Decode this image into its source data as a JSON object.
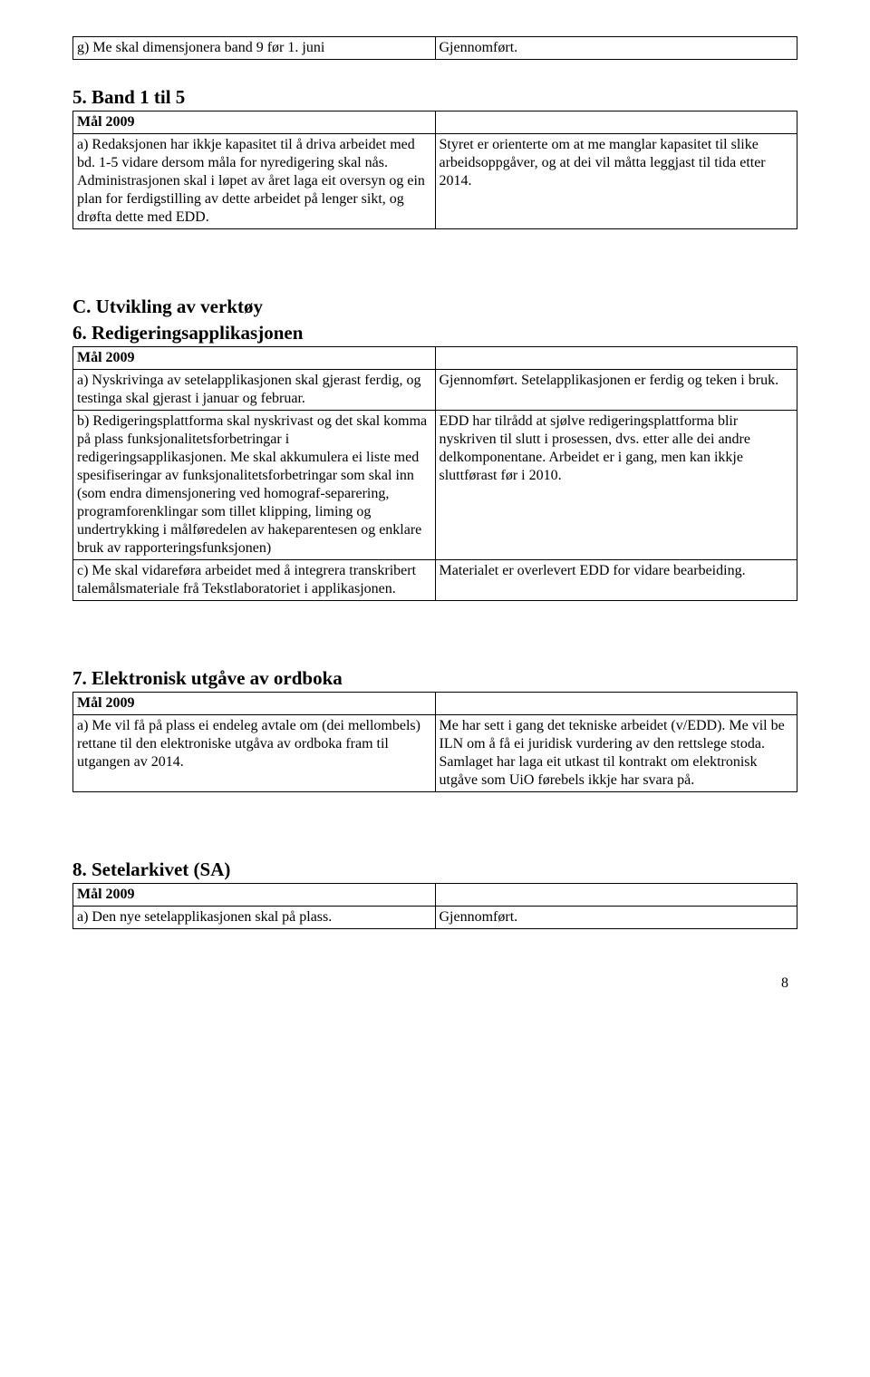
{
  "table1": {
    "left": "g) Me skal dimensjonera band 9 før 1. juni",
    "right": "Gjennomført."
  },
  "sec5": {
    "title": "5. Band 1 til 5",
    "mal": "Mål 2009",
    "r1l": "a) Redaksjonen har ikkje kapasitet til å driva arbeidet med bd. 1-5 vidare dersom måla for nyredigering skal nås. Administrasjonen skal i løpet av året laga eit oversyn og ein plan for ferdigstilling av dette arbeidet på lenger sikt, og drøfta dette med EDD.",
    "r1r": "Styret er orienterte om at me manglar kapasitet til slike arbeidsoppgåver, og at dei vil måtta leggjast til tida etter 2014."
  },
  "secC": {
    "title": "C. Utvikling av verktøy",
    "sub": "6. Redigeringsapplikasjonen",
    "mal": "Mål 2009",
    "r1l": "a) Nyskrivinga av setelapplikasjonen skal gjerast ferdig, og testinga skal gjerast i januar og februar.",
    "r1r": "Gjennomført. Setelapplikasjonen er ferdig og teken i bruk.",
    "r2l": "b) Redigeringsplattforma skal nyskrivast og det skal komma på plass funksjonalitetsforbetringar i redigeringsapplikasjonen. Me skal akkumulera ei liste med spesifiseringar av funksjonalitetsforbetringar som skal inn (som endra dimensjonering ved homograf-separering, programforenklingar som tillet klipping, liming og undertrykking i målføredelen av hakeparentesen og enklare bruk av rapporteringsfunksjonen)",
    "r2r": "EDD har tilrådd at sjølve redigeringsplattforma blir nyskriven til slutt i prosessen, dvs. etter alle dei andre delkomponentane. Arbeidet er i gang, men kan ikkje sluttførast før i 2010.",
    "r3l": "c) Me skal vidareføra arbeidet med å integrera transkribert talemålsmateriale frå Tekstlaboratoriet i applikasjonen.",
    "r3r": "Materialet er overlevert EDD for vidare bearbeiding."
  },
  "sec7": {
    "title": "7. Elektronisk utgåve av ordboka",
    "mal": "Mål 2009",
    "r1l": "a) Me vil få på plass ei endeleg avtale om (dei mellombels) rettane til den elektroniske utgåva av ordboka fram til utgangen av 2014.",
    "r1r": "Me har sett i gang det tekniske arbeidet (v/EDD). Me vil be ILN om å få ei juridisk vurdering av den rettslege stoda. Samlaget har laga eit utkast til kontrakt om elektronisk utgåve som UiO førebels ikkje har svara på."
  },
  "sec8": {
    "title": "8. Setelarkivet (SA)",
    "mal": "Mål 2009",
    "r1l": "a) Den nye setelapplikasjonen skal på plass.",
    "r1r": "Gjennomført."
  },
  "pageNumber": "8"
}
